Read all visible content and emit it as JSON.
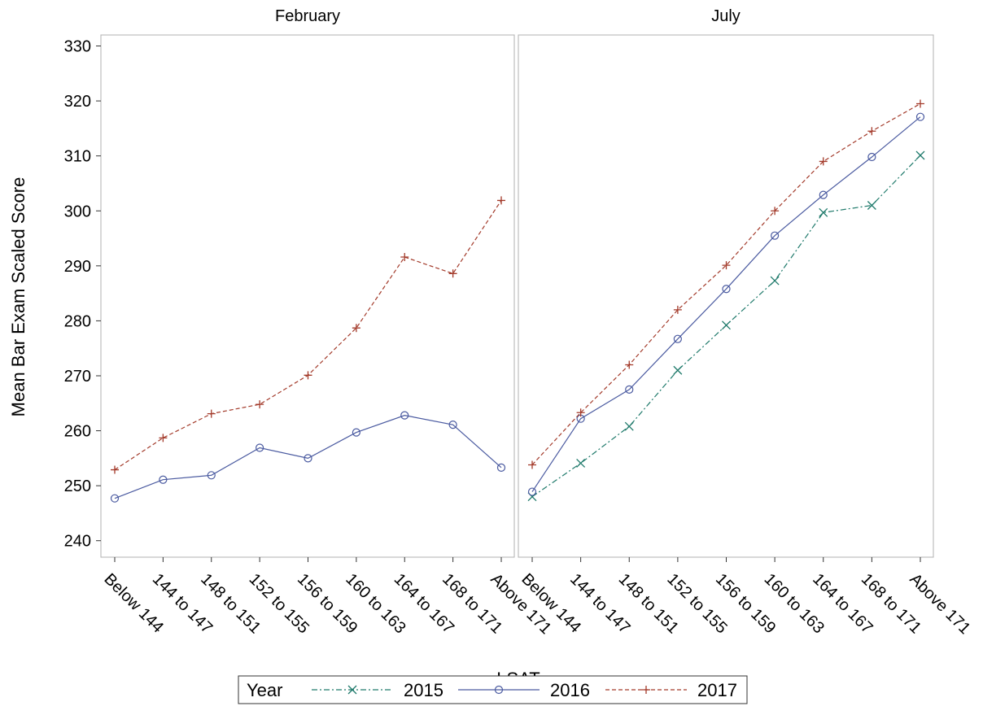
{
  "chart_data": {
    "type": "line",
    "ylabel": "Mean Bar Exam Scaled Score",
    "xlabel": "LSAT",
    "ylim": [
      237,
      332
    ],
    "yticks": [
      240,
      250,
      260,
      270,
      280,
      290,
      300,
      310,
      320,
      330
    ],
    "categories": [
      "Below 144",
      "144 to 147",
      "148 to 151",
      "152 to 155",
      "156 to 159",
      "160 to 163",
      "164 to 167",
      "168 to 171",
      "Above 171"
    ],
    "grid": false,
    "legend": {
      "title": "Year",
      "placement": "bottom",
      "entries": [
        "2015",
        "2016",
        "2017"
      ]
    },
    "styles": {
      "2015": {
        "color": "#1f7a6b",
        "dash": "dashdot",
        "marker": "x"
      },
      "2016": {
        "color": "#4a5aa0",
        "dash": "solid",
        "marker": "circle"
      },
      "2017": {
        "color": "#a33a2a",
        "dash": "dashed",
        "marker": "plus"
      }
    },
    "panels": [
      {
        "title": "February",
        "series": [
          {
            "name": "2016",
            "values": [
              247.7,
              251.1,
              251.9,
              256.9,
              255.0,
              259.7,
              262.8,
              261.1,
              253.3
            ]
          },
          {
            "name": "2017",
            "values": [
              252.9,
              258.7,
              263.1,
              264.8,
              270.1,
              278.7,
              291.6,
              288.6,
              301.9
            ]
          }
        ]
      },
      {
        "title": "July",
        "series": [
          {
            "name": "2015",
            "values": [
              248.0,
              254.1,
              260.8,
              271.0,
              279.2,
              287.3,
              299.7,
              301.0,
              310.1
            ]
          },
          {
            "name": "2016",
            "values": [
              248.9,
              262.2,
              267.5,
              276.7,
              285.8,
              295.5,
              302.9,
              309.8,
              317.1
            ]
          },
          {
            "name": "2017",
            "values": [
              253.8,
              263.3,
              272.0,
              282.0,
              290.1,
              300.0,
              309.0,
              314.5,
              319.5
            ]
          }
        ]
      }
    ]
  }
}
